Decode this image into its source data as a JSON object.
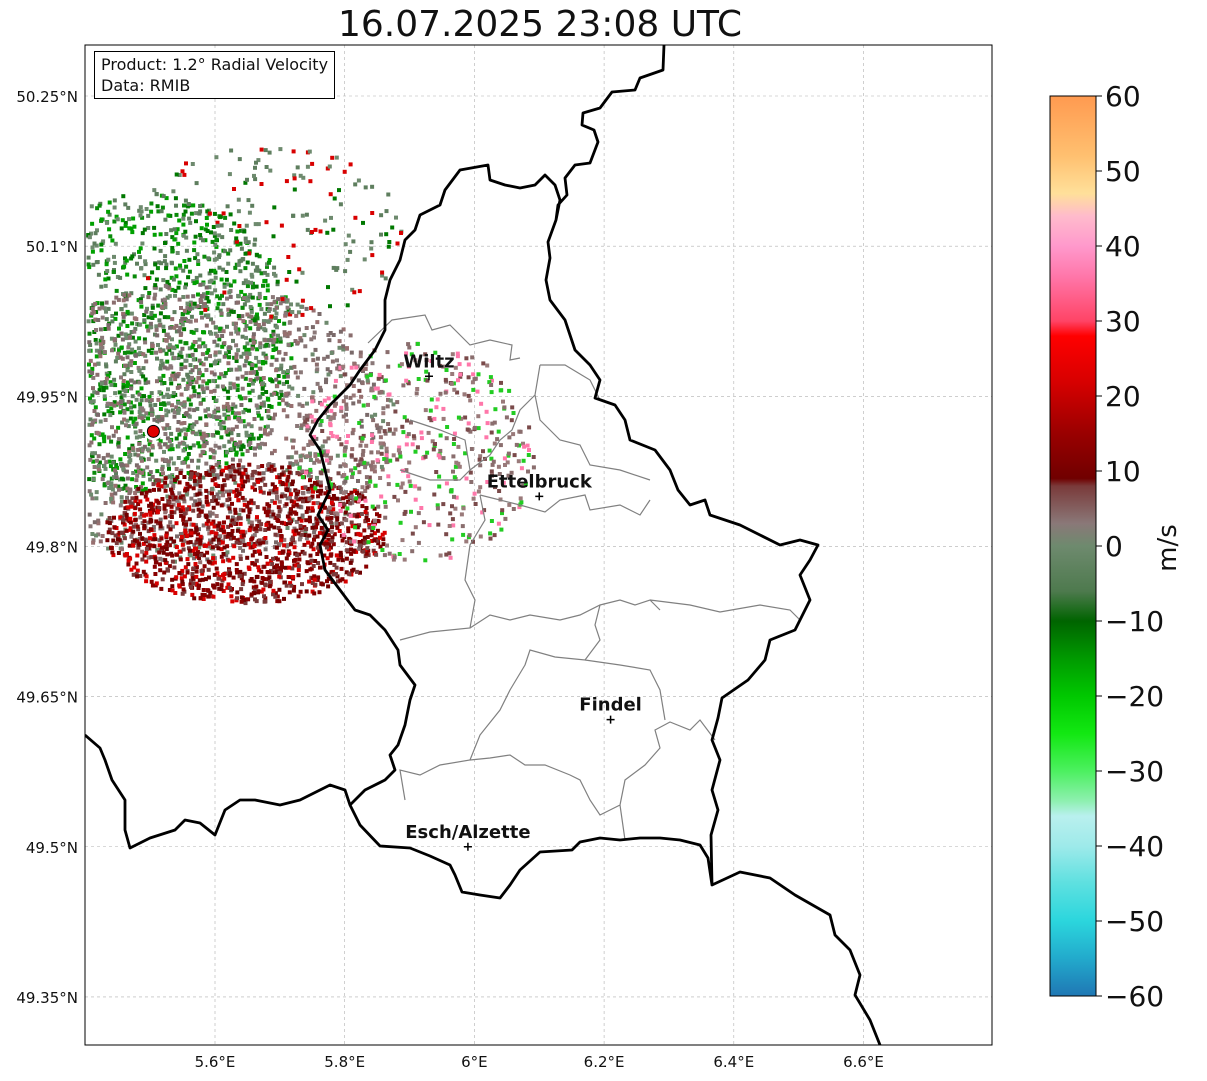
{
  "title": "16.07.2025 23:08 UTC",
  "info": {
    "product": "Product: 1.2° Radial Velocity",
    "data": "Data: RMIB"
  },
  "map": {
    "lat_ticks": [
      {
        "value": 50.25,
        "label": "50.25°N"
      },
      {
        "value": 50.1,
        "label": "50.1°N"
      },
      {
        "value": 49.95,
        "label": "49.95°N"
      },
      {
        "value": 49.8,
        "label": "49.8°N"
      },
      {
        "value": 49.65,
        "label": "49.65°N"
      },
      {
        "value": 49.5,
        "label": "49.5°N"
      },
      {
        "value": 49.35,
        "label": "49.35°N"
      }
    ],
    "lon_ticks": [
      {
        "value": 5.6,
        "label": "5.6°E"
      },
      {
        "value": 5.8,
        "label": "5.8°E"
      },
      {
        "value": 6.0,
        "label": "6°E"
      },
      {
        "value": 6.2,
        "label": "6.2°E"
      },
      {
        "value": 6.4,
        "label": "6.4°E"
      },
      {
        "value": 6.6,
        "label": "6.6°E"
      }
    ],
    "cities": [
      {
        "name": "Wiltz",
        "lon": 5.93,
        "lat": 49.97
      },
      {
        "name": "Ettelbruck",
        "lon": 6.1,
        "lat": 49.85
      },
      {
        "name": "Findel",
        "lon": 6.21,
        "lat": 49.627
      },
      {
        "name": "Esch/Alzette",
        "lon": 5.99,
        "lat": 49.5
      }
    ],
    "radar": {
      "lon": 5.505,
      "lat": 49.915
    }
  },
  "colorbar": {
    "label": "m/s",
    "min": -60,
    "max": 60,
    "ticks": [
      {
        "value": 60,
        "label": "60"
      },
      {
        "value": 50,
        "label": "50"
      },
      {
        "value": 40,
        "label": "40"
      },
      {
        "value": 30,
        "label": "30"
      },
      {
        "value": 20,
        "label": "20"
      },
      {
        "value": 10,
        "label": "10"
      },
      {
        "value": 0,
        "label": "0"
      },
      {
        "value": -10,
        "label": "−10"
      },
      {
        "value": -20,
        "label": "−20"
      },
      {
        "value": -30,
        "label": "−30"
      },
      {
        "value": -40,
        "label": "−40"
      },
      {
        "value": -50,
        "label": "−50"
      },
      {
        "value": -60,
        "label": "−60"
      }
    ],
    "stops": [
      {
        "v": -60,
        "c": "#1f77b4"
      },
      {
        "v": -55,
        "c": "#22aacc"
      },
      {
        "v": -50,
        "c": "#2bd6dd"
      },
      {
        "v": -45,
        "c": "#5de0e0"
      },
      {
        "v": -40,
        "c": "#9eeaea"
      },
      {
        "v": -36,
        "c": "#b9f0ee"
      },
      {
        "v": -34,
        "c": "#8ef0b0"
      },
      {
        "v": -30,
        "c": "#4cf060"
      },
      {
        "v": -25,
        "c": "#12e812"
      },
      {
        "v": -20,
        "c": "#00c800"
      },
      {
        "v": -15,
        "c": "#009a00"
      },
      {
        "v": -10,
        "c": "#006400"
      },
      {
        "v": -6,
        "c": "#4e7a4e"
      },
      {
        "v": 0,
        "c": "#6e8a6e"
      },
      {
        "v": 3,
        "c": "#8a7878"
      },
      {
        "v": 8,
        "c": "#7a3a3a"
      },
      {
        "v": 9,
        "c": "#700000"
      },
      {
        "v": 15,
        "c": "#9a0000"
      },
      {
        "v": 22,
        "c": "#d80000"
      },
      {
        "v": 28,
        "c": "#ff0000"
      },
      {
        "v": 30,
        "c": "#ff4466"
      },
      {
        "v": 36,
        "c": "#ff77aa"
      },
      {
        "v": 40,
        "c": "#ff99cc"
      },
      {
        "v": 44,
        "c": "#ffbbcc"
      },
      {
        "v": 47,
        "c": "#ffe09a"
      },
      {
        "v": 52,
        "c": "#ffc070"
      },
      {
        "v": 60,
        "c": "#ff9a50"
      }
    ]
  },
  "colors": {
    "border_country": "#000000",
    "border_canton": "#808080",
    "radar_marker": "#e00000"
  }
}
